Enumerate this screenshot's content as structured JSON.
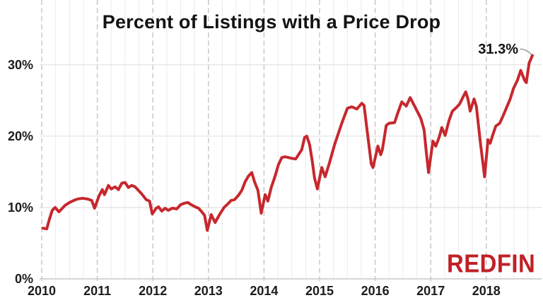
{
  "title": "Percent of Listings with a Price Drop",
  "logo": {
    "text": "REDFIN",
    "color": "#c02026"
  },
  "chart_data": {
    "type": "line",
    "title": "Percent of Listings with a Price Drop",
    "series_name": "Percent of listings with a price drop",
    "xlabel": "",
    "ylabel": "",
    "x_unit": "decimal year (monthly data, 2010 - Nov 2018)",
    "xlim": [
      2010,
      2019
    ],
    "ylim": [
      0,
      39
    ],
    "xtick_values": [
      2010,
      2011,
      2012,
      2013,
      2014,
      2015,
      2016,
      2017,
      2018
    ],
    "xtick_labels": [
      "2010",
      "2011",
      "2012",
      "2013",
      "2014",
      "2015",
      "2016",
      "2017",
      "2018"
    ],
    "ytick_values": [
      0,
      10,
      20,
      30
    ],
    "ytick_labels": [
      "0%",
      "10%",
      "20%",
      "30%"
    ],
    "grid": {
      "horizontal": "solid light line at each 10%",
      "vertical_major": "dashed gray line at each year, full image height",
      "vertical_minor_step_years": 0.25,
      "legend": "none"
    },
    "line_color": "#c6282d",
    "annotation": {
      "label": "31.3%",
      "x": 2018.83,
      "y": 31.3
    },
    "points": [
      [
        2010.02,
        7.1
      ],
      [
        2010.09,
        7.0
      ],
      [
        2010.14,
        8.4
      ],
      [
        2010.19,
        9.6
      ],
      [
        2010.24,
        10.0
      ],
      [
        2010.31,
        9.4
      ],
      [
        2010.42,
        10.3
      ],
      [
        2010.5,
        10.7
      ],
      [
        2010.58,
        11.0
      ],
      [
        2010.65,
        11.2
      ],
      [
        2010.73,
        11.3
      ],
      [
        2010.82,
        11.2
      ],
      [
        2010.9,
        11.0
      ],
      [
        2010.95,
        9.9
      ],
      [
        2011.03,
        11.6
      ],
      [
        2011.09,
        12.5
      ],
      [
        2011.13,
        11.8
      ],
      [
        2011.2,
        13.1
      ],
      [
        2011.25,
        12.6
      ],
      [
        2011.32,
        12.9
      ],
      [
        2011.38,
        12.5
      ],
      [
        2011.44,
        13.4
      ],
      [
        2011.5,
        13.5
      ],
      [
        2011.56,
        12.8
      ],
      [
        2011.62,
        13.1
      ],
      [
        2011.68,
        12.9
      ],
      [
        2011.74,
        12.4
      ],
      [
        2011.8,
        11.9
      ],
      [
        2011.88,
        11.1
      ],
      [
        2011.94,
        10.9
      ],
      [
        2011.99,
        9.1
      ],
      [
        2012.06,
        9.9
      ],
      [
        2012.1,
        10.1
      ],
      [
        2012.16,
        9.5
      ],
      [
        2012.22,
        9.9
      ],
      [
        2012.28,
        9.6
      ],
      [
        2012.35,
        9.9
      ],
      [
        2012.43,
        9.8
      ],
      [
        2012.5,
        10.4
      ],
      [
        2012.57,
        10.6
      ],
      [
        2012.63,
        10.7
      ],
      [
        2012.69,
        10.4
      ],
      [
        2012.76,
        10.1
      ],
      [
        2012.82,
        9.9
      ],
      [
        2012.88,
        9.4
      ],
      [
        2012.93,
        8.9
      ],
      [
        2012.98,
        6.8
      ],
      [
        2013.05,
        9.0
      ],
      [
        2013.12,
        7.9
      ],
      [
        2013.2,
        9.0
      ],
      [
        2013.28,
        10.0
      ],
      [
        2013.35,
        10.5
      ],
      [
        2013.41,
        11.0
      ],
      [
        2013.47,
        11.1
      ],
      [
        2013.54,
        11.7
      ],
      [
        2013.6,
        12.4
      ],
      [
        2013.66,
        13.6
      ],
      [
        2013.72,
        14.4
      ],
      [
        2013.78,
        14.9
      ],
      [
        2013.83,
        13.6
      ],
      [
        2013.89,
        12.4
      ],
      [
        2013.95,
        9.2
      ],
      [
        2014.02,
        11.8
      ],
      [
        2014.07,
        10.9
      ],
      [
        2014.13,
        12.8
      ],
      [
        2014.2,
        14.4
      ],
      [
        2014.26,
        16.0
      ],
      [
        2014.32,
        17.0
      ],
      [
        2014.38,
        17.1
      ],
      [
        2014.49,
        16.9
      ],
      [
        2014.57,
        16.8
      ],
      [
        2014.68,
        18.1
      ],
      [
        2014.73,
        19.8
      ],
      [
        2014.77,
        20.0
      ],
      [
        2014.82,
        18.8
      ],
      [
        2014.87,
        16.4
      ],
      [
        2014.91,
        14.1
      ],
      [
        2014.96,
        12.6
      ],
      [
        2015.04,
        15.6
      ],
      [
        2015.1,
        14.3
      ],
      [
        2015.18,
        16.3
      ],
      [
        2015.27,
        18.8
      ],
      [
        2015.4,
        21.8
      ],
      [
        2015.5,
        23.9
      ],
      [
        2015.58,
        24.1
      ],
      [
        2015.67,
        23.8
      ],
      [
        2015.76,
        24.6
      ],
      [
        2015.8,
        24.3
      ],
      [
        2015.86,
        20.5
      ],
      [
        2015.93,
        16.1
      ],
      [
        2015.96,
        15.6
      ],
      [
        2016.05,
        18.6
      ],
      [
        2016.1,
        17.4
      ],
      [
        2016.13,
        18.1
      ],
      [
        2016.2,
        21.5
      ],
      [
        2016.25,
        21.8
      ],
      [
        2016.35,
        21.9
      ],
      [
        2016.41,
        23.3
      ],
      [
        2016.48,
        24.8
      ],
      [
        2016.56,
        24.2
      ],
      [
        2016.63,
        25.4
      ],
      [
        2016.73,
        23.9
      ],
      [
        2016.82,
        22.5
      ],
      [
        2016.88,
        20.9
      ],
      [
        2016.92,
        17.8
      ],
      [
        2016.96,
        14.9
      ],
      [
        2017.04,
        19.3
      ],
      [
        2017.09,
        18.6
      ],
      [
        2017.15,
        19.8
      ],
      [
        2017.2,
        21.2
      ],
      [
        2017.26,
        20.1
      ],
      [
        2017.33,
        22.2
      ],
      [
        2017.39,
        23.5
      ],
      [
        2017.46,
        24.0
      ],
      [
        2017.52,
        24.5
      ],
      [
        2017.57,
        25.3
      ],
      [
        2017.63,
        26.2
      ],
      [
        2017.67,
        25.2
      ],
      [
        2017.71,
        23.5
      ],
      [
        2017.78,
        25.2
      ],
      [
        2017.82,
        24.2
      ],
      [
        2017.9,
        18.7
      ],
      [
        2017.97,
        14.3
      ],
      [
        2018.03,
        19.5
      ],
      [
        2018.07,
        19.0
      ],
      [
        2018.11,
        20.0
      ],
      [
        2018.17,
        21.4
      ],
      [
        2018.24,
        21.8
      ],
      [
        2018.3,
        22.8
      ],
      [
        2018.37,
        24.1
      ],
      [
        2018.43,
        25.2
      ],
      [
        2018.49,
        26.7
      ],
      [
        2018.56,
        27.8
      ],
      [
        2018.62,
        29.2
      ],
      [
        2018.69,
        27.8
      ],
      [
        2018.72,
        27.5
      ],
      [
        2018.77,
        30.2
      ],
      [
        2018.83,
        31.3
      ]
    ]
  }
}
